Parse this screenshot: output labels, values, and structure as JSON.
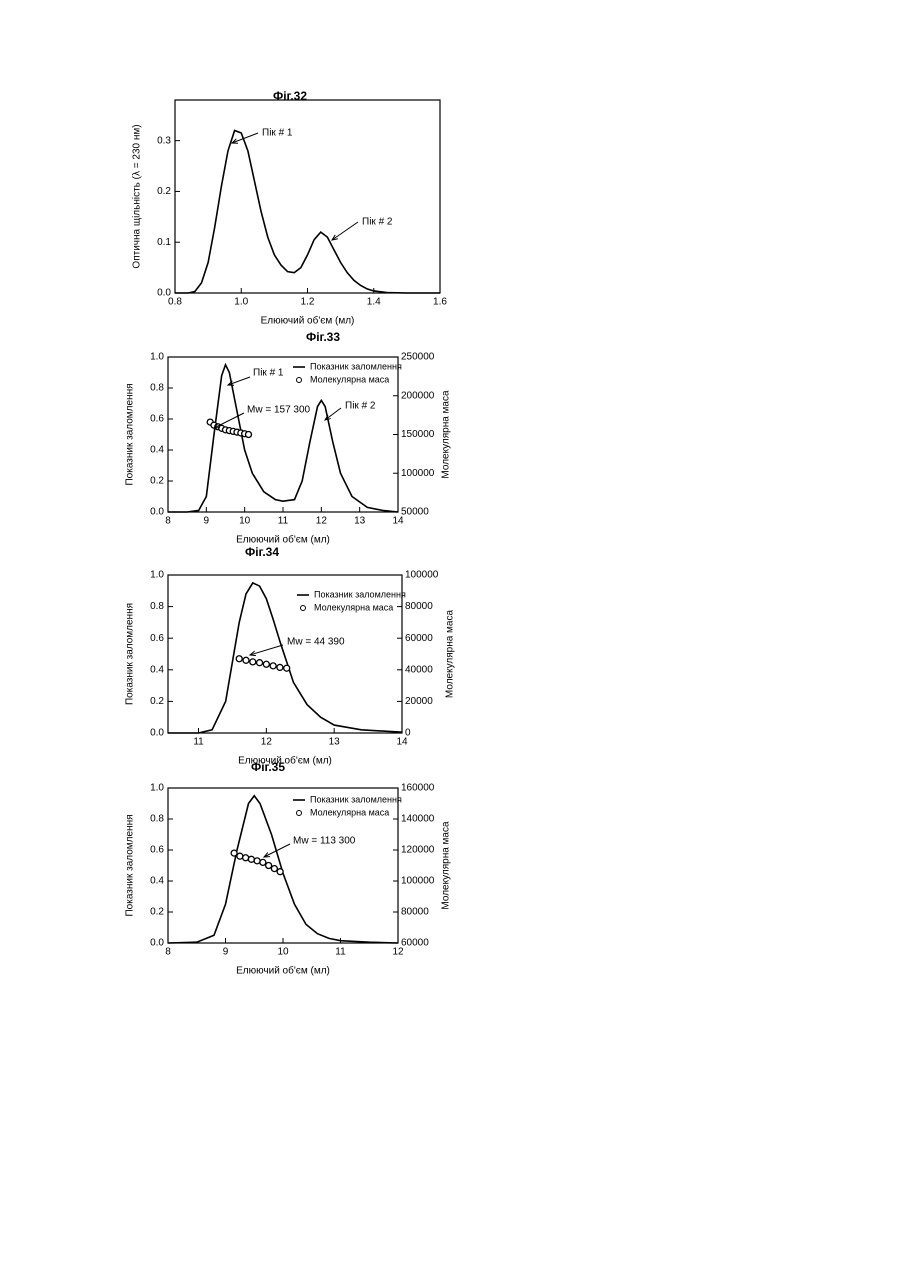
{
  "chart_data": [
    {
      "type": "line",
      "title": "Фіг.32",
      "x_label": "Елюючий об'єм (мл)",
      "y_label": "Оптична щільність (λ = 230 нм)",
      "xlim": [
        0.8,
        1.6
      ],
      "xticks": [
        0.8,
        {
          "value": 1.0,
          "label": "1.0"
        },
        1.2,
        1.4,
        1.6
      ],
      "ylim": [
        0,
        0.38
      ],
      "yticks": [
        {
          "value": 0,
          "label": "0.0"
        },
        0.1,
        0.2,
        0.3
      ],
      "series": [
        {
          "type": "line",
          "color": "#000000",
          "x": [
            0.8,
            0.82,
            0.84,
            0.86,
            0.88,
            0.9,
            0.92,
            0.94,
            0.96,
            0.98,
            1.0,
            1.02,
            1.04,
            1.06,
            1.08,
            1.1,
            1.12,
            1.14,
            1.16,
            1.18,
            1.2,
            1.22,
            1.24,
            1.26,
            1.28,
            1.3,
            1.32,
            1.34,
            1.36,
            1.38,
            1.4,
            1.44,
            1.5,
            1.6
          ],
          "values": [
            0,
            0,
            0,
            0.003,
            0.02,
            0.06,
            0.13,
            0.21,
            0.28,
            0.32,
            0.315,
            0.28,
            0.22,
            0.16,
            0.11,
            0.075,
            0.055,
            0.042,
            0.04,
            0.05,
            0.075,
            0.105,
            0.12,
            0.11,
            0.085,
            0.06,
            0.04,
            0.025,
            0.015,
            0.008,
            0.004,
            0.001,
            0,
            0
          ]
        }
      ],
      "annotations": [
        "Пік # 1",
        "Пік # 2"
      ]
    },
    {
      "type": "line",
      "title": "Фіг.33",
      "x_label": "Елюючий об'єм (мл)",
      "y_label": "Показник заломлення",
      "y2_label": "Молекулярна маса",
      "xlim": [
        8,
        14
      ],
      "xticks": [
        8,
        9,
        10,
        11,
        12,
        13,
        14
      ],
      "ylim": [
        0,
        1
      ],
      "yticks": [
        {
          "value": 0,
          "label": "0.0"
        },
        0.2,
        0.4,
        0.6,
        0.8,
        {
          "value": 1,
          "label": "1.0"
        }
      ],
      "y2lim": [
        50000,
        250000
      ],
      "y2ticks": [
        50000,
        100000,
        150000,
        200000,
        250000
      ],
      "legend": "upper right",
      "series": [
        {
          "type": "line",
          "name": "Показник заломлення",
          "color": "#000000",
          "x": [
            8,
            8.5,
            8.8,
            9.0,
            9.2,
            9.4,
            9.5,
            9.6,
            9.8,
            10.0,
            10.2,
            10.5,
            10.8,
            11.0,
            11.3,
            11.5,
            11.7,
            11.9,
            12.0,
            12.1,
            12.3,
            12.5,
            12.8,
            13.2,
            13.6,
            14
          ],
          "values": [
            0,
            0,
            0.01,
            0.1,
            0.5,
            0.88,
            0.95,
            0.9,
            0.65,
            0.4,
            0.25,
            0.13,
            0.08,
            0.07,
            0.08,
            0.2,
            0.45,
            0.68,
            0.72,
            0.68,
            0.45,
            0.25,
            0.1,
            0.03,
            0.01,
            0
          ]
        },
        {
          "type": "scatter",
          "name": "Молекулярна маса",
          "color": "#000000",
          "axis": "y2",
          "x": [
            9.1,
            9.2,
            9.3,
            9.4,
            9.5,
            9.6,
            9.7,
            9.8,
            9.9,
            10.0,
            10.1
          ],
          "values": [
            166000,
            162000,
            160000,
            158000,
            156000,
            155000,
            154000,
            153000,
            152000,
            151000,
            150000
          ]
        }
      ],
      "annotations": [
        "Пік # 1",
        "Пік # 2",
        "Mw = 157 300"
      ]
    },
    {
      "type": "line",
      "title": "Фіг.34",
      "x_label": "Елюючий об'єм (мл)",
      "y_label": "Показник заломлення",
      "y2_label": "Молекулярна маса",
      "xlim": [
        10.55,
        14
      ],
      "xticks": [
        11,
        12,
        13,
        14
      ],
      "ylim": [
        0,
        1
      ],
      "yticks": [
        {
          "value": 0,
          "label": "0.0"
        },
        0.2,
        0.4,
        0.6,
        0.8,
        {
          "value": 1,
          "label": "1.0"
        }
      ],
      "y2lim": [
        0,
        100000
      ],
      "y2ticks": [
        0,
        20000,
        40000,
        60000,
        80000,
        100000
      ],
      "legend": "upper right",
      "series": [
        {
          "type": "line",
          "name": "Показник заломлення",
          "color": "#000000",
          "x": [
            10.55,
            11.0,
            11.2,
            11.4,
            11.5,
            11.6,
            11.7,
            11.8,
            11.9,
            12.0,
            12.1,
            12.2,
            12.3,
            12.4,
            12.6,
            12.8,
            13.0,
            13.4,
            14
          ],
          "values": [
            0,
            0,
            0.02,
            0.2,
            0.45,
            0.7,
            0.88,
            0.95,
            0.93,
            0.85,
            0.72,
            0.58,
            0.45,
            0.32,
            0.18,
            0.1,
            0.05,
            0.02,
            0.005
          ]
        },
        {
          "type": "scatter",
          "name": "Молекулярна маса",
          "color": "#000000",
          "axis": "y2",
          "x": [
            11.6,
            11.7,
            11.8,
            11.9,
            12.0,
            12.1,
            12.2,
            12.3
          ],
          "values": [
            47000,
            46000,
            45000,
            44500,
            43500,
            42500,
            41500,
            41000
          ]
        }
      ],
      "annotations": [
        "Mw = 44 390"
      ]
    },
    {
      "type": "line",
      "title": "Фіг.35",
      "x_label": "Елюючий об'єм (мл)",
      "y_label": "Показник заломлення",
      "y2_label": "Молекулярна маса",
      "xlim": [
        8,
        12
      ],
      "xticks": [
        8,
        9,
        10,
        11,
        12
      ],
      "ylim": [
        0,
        1
      ],
      "yticks": [
        {
          "value": 0,
          "label": "0.0"
        },
        0.2,
        0.4,
        0.6,
        0.8,
        {
          "value": 1,
          "label": "1.0"
        }
      ],
      "y2lim": [
        60000,
        160000
      ],
      "y2ticks": [
        60000,
        80000,
        100000,
        120000,
        140000,
        160000
      ],
      "legend": "upper right",
      "series": [
        {
          "type": "line",
          "name": "Показник заломлення",
          "color": "#000000",
          "x": [
            8,
            8.5,
            8.8,
            9.0,
            9.2,
            9.4,
            9.5,
            9.6,
            9.8,
            10.0,
            10.2,
            10.4,
            10.6,
            10.8,
            11.0,
            11.5,
            12
          ],
          "values": [
            0,
            0.005,
            0.05,
            0.25,
            0.6,
            0.9,
            0.95,
            0.9,
            0.7,
            0.45,
            0.25,
            0.12,
            0.06,
            0.03,
            0.015,
            0.005,
            0
          ]
        },
        {
          "type": "scatter",
          "name": "Молекулярна маса",
          "color": "#000000",
          "axis": "y2",
          "x": [
            9.15,
            9.25,
            9.35,
            9.45,
            9.55,
            9.65,
            9.75,
            9.85,
            9.95
          ],
          "values": [
            118000,
            116000,
            115000,
            114000,
            113000,
            112000,
            110000,
            108000,
            106000
          ]
        }
      ],
      "annotations": [
        "Mw = 113 300"
      ]
    }
  ]
}
